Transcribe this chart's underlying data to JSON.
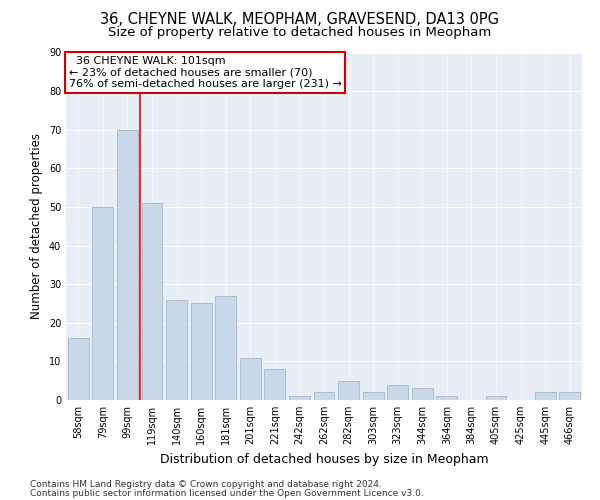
{
  "title1": "36, CHEYNE WALK, MEOPHAM, GRAVESEND, DA13 0PG",
  "title2": "Size of property relative to detached houses in Meopham",
  "xlabel": "Distribution of detached houses by size in Meopham",
  "ylabel": "Number of detached properties",
  "categories": [
    "58sqm",
    "79sqm",
    "99sqm",
    "119sqm",
    "140sqm",
    "160sqm",
    "181sqm",
    "201sqm",
    "221sqm",
    "242sqm",
    "262sqm",
    "282sqm",
    "303sqm",
    "323sqm",
    "344sqm",
    "364sqm",
    "384sqm",
    "405sqm",
    "425sqm",
    "445sqm",
    "466sqm"
  ],
  "values": [
    16,
    50,
    70,
    51,
    26,
    25,
    27,
    11,
    8,
    1,
    2,
    5,
    2,
    4,
    3,
    1,
    0,
    1,
    0,
    2,
    2
  ],
  "bar_color": "#c9d9ea",
  "bar_edge_color": "#aabcce",
  "property_line_x": 2.5,
  "annotation_line1": "  36 CHEYNE WALK: 101sqm",
  "annotation_line2": "← 23% of detached houses are smaller (70)",
  "annotation_line3": "76% of semi-detached houses are larger (231) →",
  "annotation_box_color": "#cc0000",
  "ylim": [
    0,
    90
  ],
  "yticks": [
    0,
    10,
    20,
    30,
    40,
    50,
    60,
    70,
    80,
    90
  ],
  "bg_color": "#e8eef5",
  "footer1": "Contains HM Land Registry data © Crown copyright and database right 2024.",
  "footer2": "Contains public sector information licensed under the Open Government Licence v3.0.",
  "title_fontsize": 10.5,
  "subtitle_fontsize": 9.5,
  "axis_label_fontsize": 8.5,
  "tick_fontsize": 7,
  "footer_fontsize": 6.5,
  "annotation_fontsize": 8
}
